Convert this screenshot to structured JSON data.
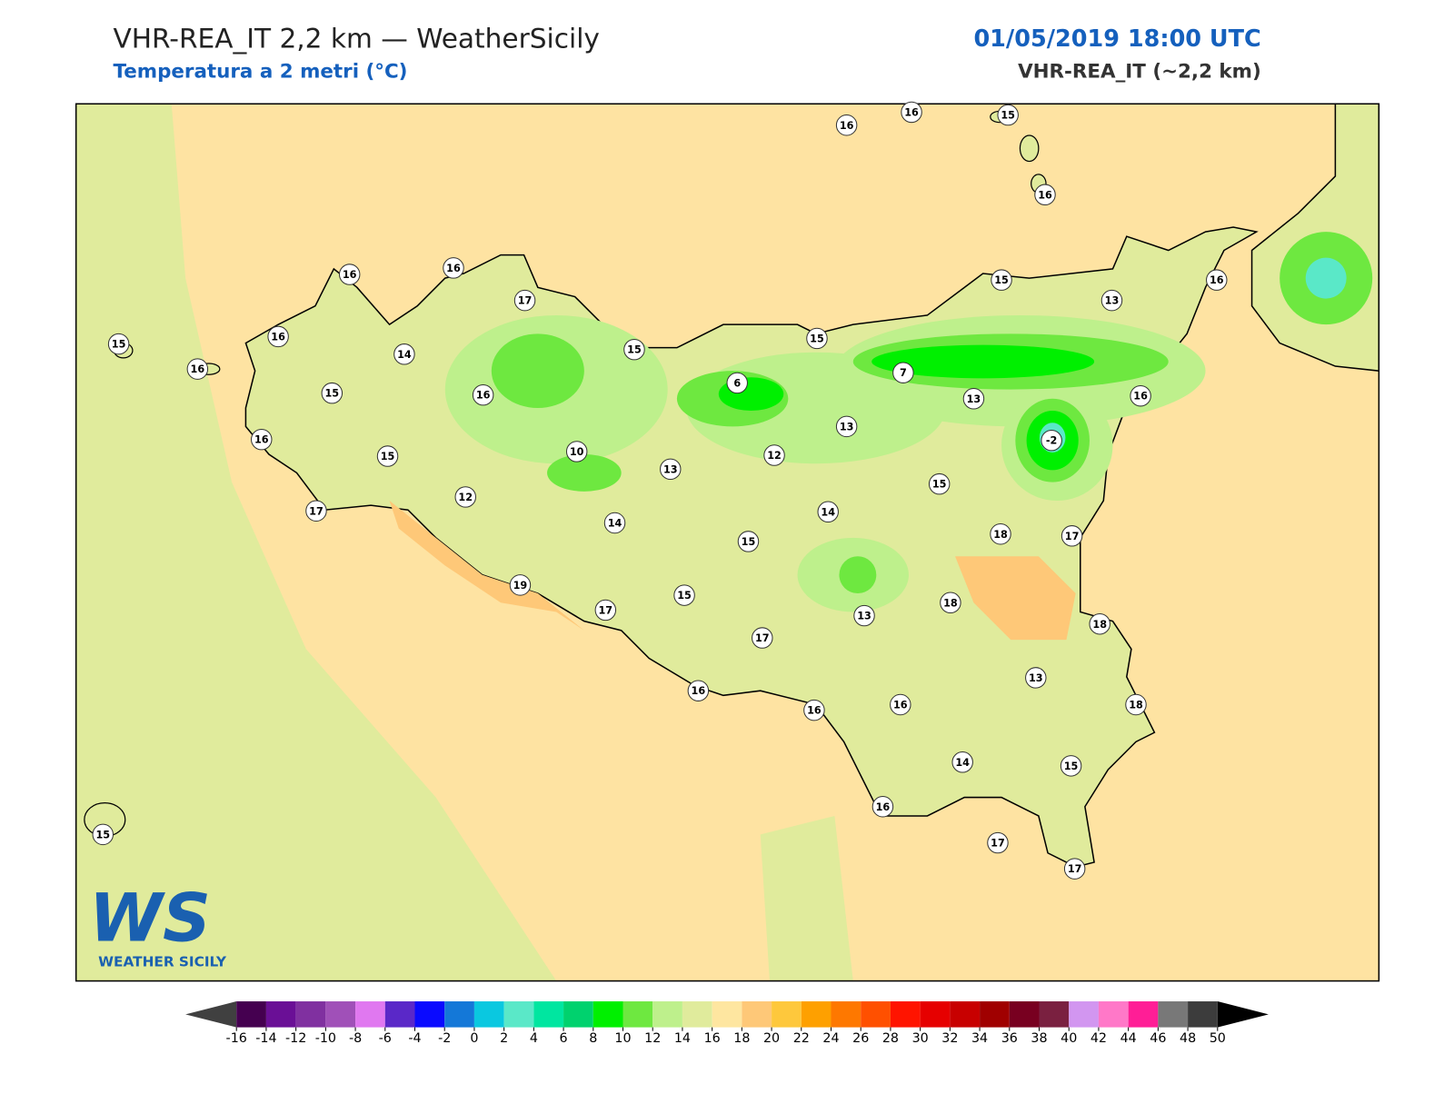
{
  "header": {
    "title": "VHR-REA_IT 2,2 km — WeatherSicily",
    "subtitle": "Temperatura a 2 metri (°C)",
    "datetime": "01/05/2019 18:00 UTC",
    "model": "VHR-REA_IT (~2,2 km)"
  },
  "stations": [
    16,
    16,
    15,
    16,
    16,
    16,
    17,
    15,
    16,
    13,
    15,
    16,
    14,
    15,
    15,
    16,
    15,
    16,
    6,
    7,
    13,
    16,
    13,
    16,
    -2,
    15,
    10,
    12,
    13,
    15,
    12,
    17,
    14,
    14,
    15,
    18,
    17,
    19,
    15,
    17,
    18,
    13,
    18,
    17,
    13,
    16,
    16,
    16,
    18,
    14,
    15,
    16,
    15,
    17,
    17
  ],
  "colorbar": {
    "ticks": [
      -16,
      -14,
      -12,
      -10,
      -8,
      -6,
      -4,
      -2,
      0,
      2,
      4,
      6,
      8,
      10,
      12,
      14,
      16,
      18,
      20,
      22,
      24,
      26,
      28,
      30,
      32,
      34,
      36,
      38,
      40,
      42,
      44,
      46,
      48,
      50
    ],
    "colors": [
      "#450050",
      "#6a0f96",
      "#8030a0",
      "#a050b8",
      "#e078f0",
      "#5a28c8",
      "#0a0aff",
      "#1478d8",
      "#0ac8e0",
      "#5ae8c8",
      "#00e6a0",
      "#00d26e",
      "#00f000",
      "#6ee840",
      "#bef08c",
      "#e0eb9c",
      "#fee6a0",
      "#fec878",
      "#fec83c",
      "#fea000",
      "#fe7800",
      "#ff5000",
      "#ff1400",
      "#e60000",
      "#c80000",
      "#a00000",
      "#780020",
      "#7a2040",
      "#d296f0",
      "#ff78c8",
      "#ff1e96",
      "#787878",
      "#3c3c3c"
    ],
    "under_color": "#404040",
    "over_color": "#000000"
  },
  "logo": {
    "mark": "WS",
    "text": "WEATHER SICILY"
  }
}
